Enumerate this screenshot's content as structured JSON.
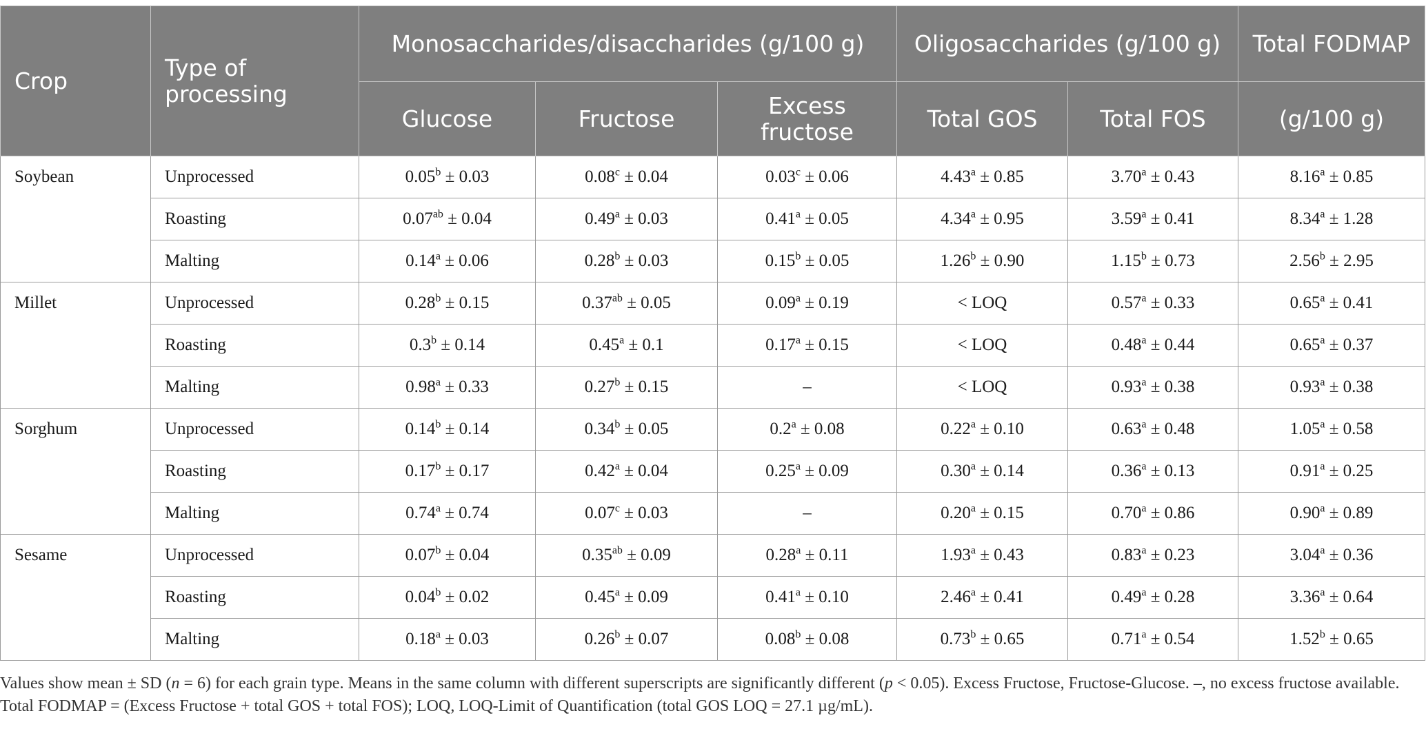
{
  "header": {
    "crop": "Crop",
    "type_of_processing": "Type of processing",
    "mono_di": "Monosaccharides/disaccharides (g/100 g)",
    "oligo": "Oligosaccharides (g/100 g)",
    "total_fodmap": "Total FODMAP",
    "glucose": "Glucose",
    "fructose": "Fructose",
    "excess_fructose": "Excess fructose",
    "total_gos": "Total GOS",
    "total_fos": "Total FOS",
    "total_unit": "(g/100 g)"
  },
  "rows": [
    {
      "crop": "Soybean",
      "process": "Unprocessed",
      "glucose": {
        "v": "0.05",
        "s": "b",
        "sd": " ± 0.03"
      },
      "fructose": {
        "v": "0.08",
        "s": "c",
        "sd": " ± 0.04"
      },
      "excess": {
        "v": "0.03",
        "s": "c",
        "sd": " ± 0.06"
      },
      "gos": {
        "v": "4.43",
        "s": "a",
        "sd": " ± 0.85"
      },
      "fos": {
        "v": "3.70",
        "s": "a",
        "sd": " ± 0.43"
      },
      "total": {
        "v": "8.16",
        "s": "a",
        "sd": " ± 0.85"
      }
    },
    {
      "crop": "",
      "process": "Roasting",
      "glucose": {
        "v": "0.07",
        "s": "ab",
        "sd": " ± 0.04"
      },
      "fructose": {
        "v": "0.49",
        "s": "a",
        "sd": " ± 0.03"
      },
      "excess": {
        "v": "0.41",
        "s": "a",
        "sd": " ± 0.05"
      },
      "gos": {
        "v": "4.34",
        "s": "a",
        "sd": " ± 0.95"
      },
      "fos": {
        "v": "3.59",
        "s": "a",
        "sd": " ± 0.41"
      },
      "total": {
        "v": "8.34",
        "s": "a",
        "sd": " ± 1.28"
      }
    },
    {
      "crop": "",
      "process": "Malting",
      "glucose": {
        "v": "0.14",
        "s": "a",
        "sd": " ± 0.06"
      },
      "fructose": {
        "v": "0.28",
        "s": "b",
        "sd": " ± 0.03"
      },
      "excess": {
        "v": "0.15",
        "s": "b",
        "sd": " ± 0.05"
      },
      "gos": {
        "v": "1.26",
        "s": "b",
        "sd": " ± 0.90"
      },
      "fos": {
        "v": "1.15",
        "s": "b",
        "sd": " ± 0.73"
      },
      "total": {
        "v": "2.56",
        "s": "b",
        "sd": " ± 2.95"
      }
    },
    {
      "crop": "Millet",
      "process": "Unprocessed",
      "glucose": {
        "v": "0.28",
        "s": "b",
        "sd": " ± 0.15"
      },
      "fructose": {
        "v": "0.37",
        "s": "ab",
        "sd": " ± 0.05"
      },
      "excess": {
        "v": "0.09",
        "s": "a",
        "sd": " ± 0.19"
      },
      "gos": {
        "v": "< LOQ",
        "s": "",
        "sd": ""
      },
      "fos": {
        "v": "0.57",
        "s": "a",
        "sd": " ± 0.33"
      },
      "total": {
        "v": "0.65",
        "s": "a",
        "sd": " ± 0.41"
      }
    },
    {
      "crop": "",
      "process": "Roasting",
      "glucose": {
        "v": "0.3",
        "s": "b",
        "sd": " ± 0.14"
      },
      "fructose": {
        "v": "0.45",
        "s": "a",
        "sd": " ± 0.1"
      },
      "excess": {
        "v": "0.17",
        "s": "a",
        "sd": " ± 0.15"
      },
      "gos": {
        "v": "< LOQ",
        "s": "",
        "sd": ""
      },
      "fos": {
        "v": "0.48",
        "s": "a",
        "sd": " ± 0.44"
      },
      "total": {
        "v": "0.65",
        "s": "a",
        "sd": " ± 0.37"
      }
    },
    {
      "crop": "",
      "process": "Malting",
      "glucose": {
        "v": "0.98",
        "s": "a",
        "sd": " ± 0.33"
      },
      "fructose": {
        "v": "0.27",
        "s": "b",
        "sd": " ± 0.15"
      },
      "excess": {
        "v": "–",
        "s": "",
        "sd": ""
      },
      "gos": {
        "v": "< LOQ",
        "s": "",
        "sd": ""
      },
      "fos": {
        "v": "0.93",
        "s": "a",
        "sd": " ± 0.38"
      },
      "total": {
        "v": "0.93",
        "s": "a",
        "sd": " ± 0.38"
      }
    },
    {
      "crop": "Sorghum",
      "process": "Unprocessed",
      "glucose": {
        "v": "0.14",
        "s": "b",
        "sd": " ± 0.14"
      },
      "fructose": {
        "v": "0.34",
        "s": "b",
        "sd": " ± 0.05"
      },
      "excess": {
        "v": "0.2",
        "s": "a",
        "sd": " ± 0.08"
      },
      "gos": {
        "v": "0.22",
        "s": "a",
        "sd": " ± 0.10"
      },
      "fos": {
        "v": "0.63",
        "s": "a",
        "sd": " ± 0.48"
      },
      "total": {
        "v": "1.05",
        "s": "a",
        "sd": " ± 0.58"
      }
    },
    {
      "crop": "",
      "process": "Roasting",
      "glucose": {
        "v": "0.17",
        "s": "b",
        "sd": " ± 0.17"
      },
      "fructose": {
        "v": "0.42",
        "s": "a",
        "sd": " ± 0.04"
      },
      "excess": {
        "v": "0.25",
        "s": "a",
        "sd": " ± 0.09"
      },
      "gos": {
        "v": "0.30",
        "s": "a",
        "sd": " ± 0.14"
      },
      "fos": {
        "v": "0.36",
        "s": "a",
        "sd": " ± 0.13"
      },
      "total": {
        "v": "0.91",
        "s": "a",
        "sd": " ± 0.25"
      }
    },
    {
      "crop": "",
      "process": "Malting",
      "glucose": {
        "v": "0.74",
        "s": "a",
        "sd": " ± 0.74"
      },
      "fructose": {
        "v": "0.07",
        "s": "c",
        "sd": " ± 0.03"
      },
      "excess": {
        "v": "–",
        "s": "",
        "sd": ""
      },
      "gos": {
        "v": "0.20",
        "s": "a",
        "sd": " ± 0.15"
      },
      "fos": {
        "v": "0.70",
        "s": "a",
        "sd": " ± 0.86"
      },
      "total": {
        "v": "0.90",
        "s": "a",
        "sd": " ± 0.89"
      }
    },
    {
      "crop": "Sesame",
      "process": "Unprocessed",
      "glucose": {
        "v": "0.07",
        "s": "b",
        "sd": " ± 0.04"
      },
      "fructose": {
        "v": "0.35",
        "s": "ab",
        "sd": " ± 0.09"
      },
      "excess": {
        "v": "0.28",
        "s": "a",
        "sd": " ± 0.11"
      },
      "gos": {
        "v": "1.93",
        "s": "a",
        "sd": " ± 0.43"
      },
      "fos": {
        "v": "0.83",
        "s": "a",
        "sd": " ± 0.23"
      },
      "total": {
        "v": "3.04",
        "s": "a",
        "sd": " ± 0.36"
      }
    },
    {
      "crop": "",
      "process": "Roasting",
      "glucose": {
        "v": "0.04",
        "s": "b",
        "sd": " ± 0.02"
      },
      "fructose": {
        "v": "0.45",
        "s": "a",
        "sd": " ± 0.09"
      },
      "excess": {
        "v": "0.41",
        "s": "a",
        "sd": " ± 0.10"
      },
      "gos": {
        "v": "2.46",
        "s": "a",
        "sd": " ± 0.41"
      },
      "fos": {
        "v": "0.49",
        "s": "a",
        "sd": " ± 0.28"
      },
      "total": {
        "v": "3.36",
        "s": "a",
        "sd": " ± 0.64"
      }
    },
    {
      "crop": "",
      "process": "Malting",
      "glucose": {
        "v": "0.18",
        "s": "a",
        "sd": " ± 0.03"
      },
      "fructose": {
        "v": "0.26",
        "s": "b",
        "sd": " ± 0.07"
      },
      "excess": {
        "v": "0.08",
        "s": "b",
        "sd": " ± 0.08"
      },
      "gos": {
        "v": "0.73",
        "s": "b",
        "sd": " ± 0.65"
      },
      "fos": {
        "v": "0.71",
        "s": "a",
        "sd": " ± 0.54"
      },
      "total": {
        "v": "1.52",
        "s": "b",
        "sd": " ± 0.65"
      }
    }
  ],
  "footnote": {
    "p1": "Values show mean ± SD (",
    "n": "n",
    "p2": " = 6) for each grain type. Means in the same column with different superscripts are significantly different (",
    "p": "p",
    "p3": " < 0.05). Excess Fructose, Fructose-Glucose. –, no excess fructose available. Total FODMAP = (Excess Fructose + total GOS + total FOS); LOQ, LOQ-Limit of Quantification (total GOS LOQ = 27.1 µg/mL)."
  }
}
